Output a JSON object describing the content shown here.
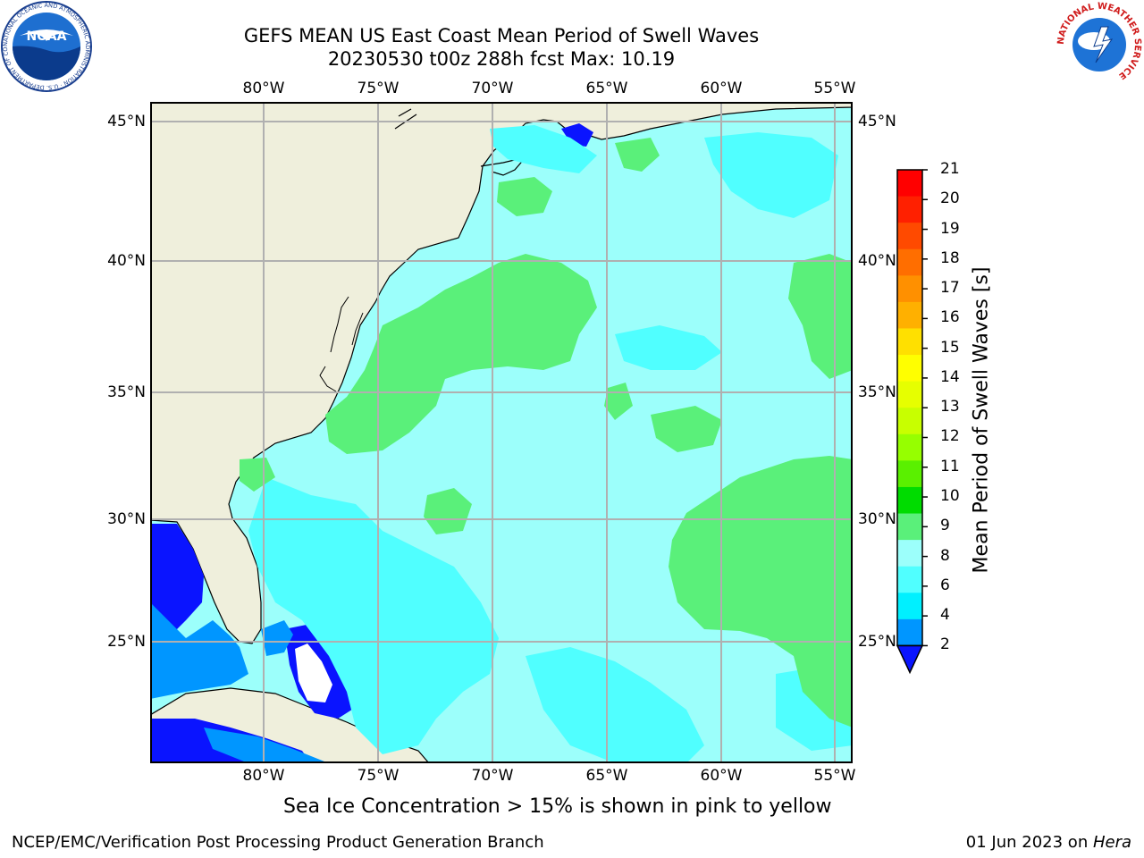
{
  "title": {
    "line1": "GEFS MEAN US East Coast Mean Period of Swell Waves",
    "line2": "20230530 t00z 288h fcst   Max: 10.19"
  },
  "map": {
    "lon_labels": [
      "80°W",
      "75°W",
      "70°W",
      "65°W",
      "60°W",
      "55°W"
    ],
    "lat_labels": [
      "45°N",
      "40°N",
      "35°N",
      "30°N",
      "25°N"
    ]
  },
  "colorbar": {
    "label": "Mean Period of Swell Waves [s]",
    "ticks": [
      "21",
      "20",
      "19",
      "18",
      "17",
      "16",
      "15",
      "14",
      "13",
      "12",
      "11",
      "10",
      "9",
      "8",
      "6",
      "4",
      "2"
    ],
    "colors": [
      "#ff0000",
      "#ff2000",
      "#ff4a00",
      "#ff6e00",
      "#ff9000",
      "#ffb000",
      "#ffe000",
      "#ffff00",
      "#e6ff00",
      "#c8ff00",
      "#96ff00",
      "#5af000",
      "#00dc00",
      "#5af07a",
      "#9cfffb",
      "#50ffff",
      "#00f0ff",
      "#0096ff",
      "#0a14ff"
    ]
  },
  "note": "Sea Ice Concentration > 15% is shown in pink to yellow",
  "footer": {
    "left": "NCEP/EMC/Verification Post Processing Product Generation Branch",
    "date": "01 Jun 2023 on ",
    "host": "Hera"
  },
  "logos": {
    "noaa_text": "NOAA",
    "noaa_ring": "NATIONAL OCEANIC AND ATMOSPHERIC ADMINISTRATION · U.S. DEPARTMENT OF COMMERCE",
    "nws_ring": "NATIONAL WEATHER SERVICE"
  }
}
